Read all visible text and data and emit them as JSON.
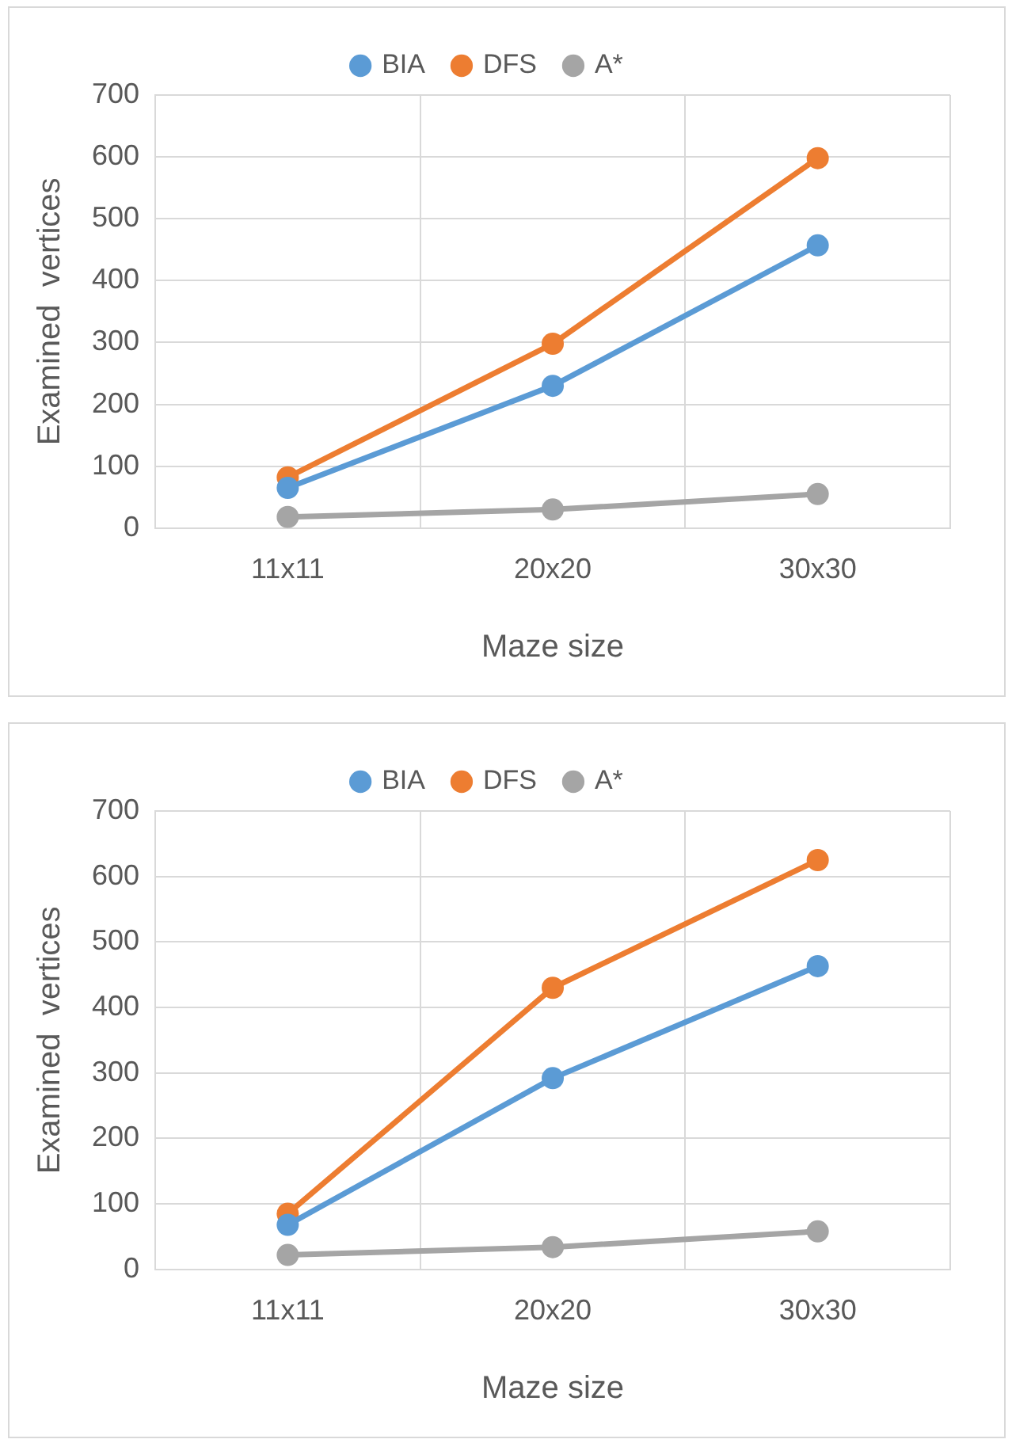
{
  "chart_data": [
    {
      "type": "line",
      "xlabel": "Maze size",
      "ylabel": "Examined  vertices",
      "categories": [
        "11x11",
        "20x20",
        "30x30"
      ],
      "series": [
        {
          "name": "BIA",
          "color": "#5b9bd5",
          "values": [
            65,
            230,
            457
          ]
        },
        {
          "name": "DFS",
          "color": "#ed7d31",
          "values": [
            82,
            298,
            598
          ]
        },
        {
          "name": "A*",
          "color": "#a5a5a5",
          "values": [
            18,
            30,
            55
          ]
        }
      ],
      "ylim": [
        0,
        700
      ],
      "yticks": [
        0,
        100,
        200,
        300,
        400,
        500,
        600,
        700
      ],
      "grid": true,
      "legend": "top",
      "marker": "circle",
      "line_style": "solid"
    },
    {
      "type": "line",
      "xlabel": "Maze size",
      "ylabel": "Examined  vertices",
      "categories": [
        "11x11",
        "20x20",
        "30x30"
      ],
      "series": [
        {
          "name": "BIA",
          "color": "#5b9bd5",
          "values": [
            68,
            292,
            463
          ]
        },
        {
          "name": "DFS",
          "color": "#ed7d31",
          "values": [
            85,
            430,
            625
          ]
        },
        {
          "name": "A*",
          "color": "#a5a5a5",
          "values": [
            22,
            34,
            58
          ]
        }
      ],
      "ylim": [
        0,
        700
      ],
      "yticks": [
        0,
        100,
        200,
        300,
        400,
        500,
        600,
        700
      ],
      "grid": true,
      "legend": "top",
      "marker": "circle",
      "line_style": "solid"
    }
  ]
}
